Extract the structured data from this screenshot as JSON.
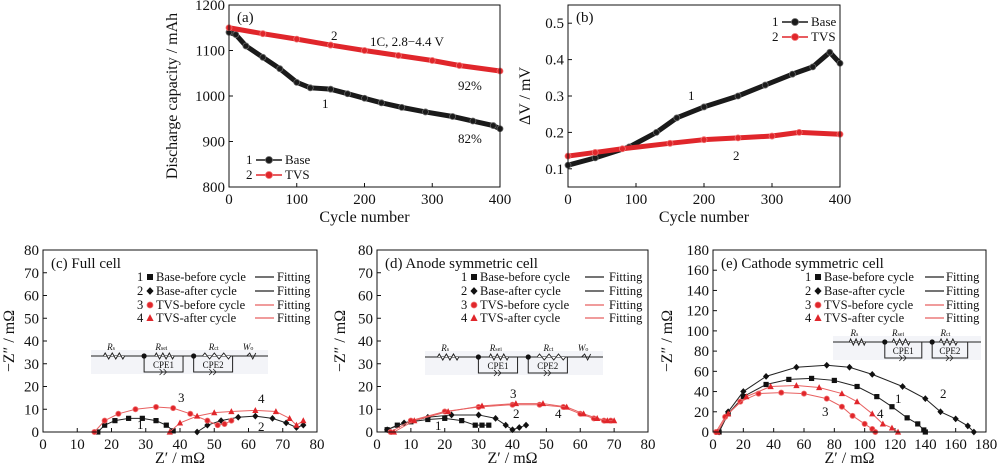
{
  "chart_data": [
    {
      "id": "a",
      "type": "line",
      "panel_label": "(a)",
      "xlabel": "Cycle number",
      "ylabel": "Discharge capacity / mAh",
      "xlim": [
        0,
        400
      ],
      "ylim": [
        800,
        1200
      ],
      "xticks": [
        0,
        100,
        200,
        300,
        400
      ],
      "yticks": [
        800,
        900,
        1000,
        1100,
        1200
      ],
      "legend_position": "bottom-left",
      "annotations": [
        "2",
        "1C, 2.8−4.4 V",
        "92%",
        "1",
        "82%"
      ],
      "series": [
        {
          "name": "Base",
          "number": "1",
          "color": "#1a1a1a",
          "marker": "circle",
          "x": [
            0,
            10,
            25,
            50,
            75,
            100,
            120,
            150,
            175,
            200,
            225,
            255,
            290,
            330,
            360,
            390,
            400
          ],
          "y": [
            1140,
            1135,
            1110,
            1085,
            1060,
            1030,
            1018,
            1015,
            1005,
            995,
            985,
            975,
            965,
            955,
            945,
            935,
            928
          ]
        },
        {
          "name": "TVS",
          "number": "2",
          "color": "#e0262b",
          "marker": "circle",
          "x": [
            0,
            50,
            100,
            150,
            200,
            250,
            300,
            340,
            400
          ],
          "y": [
            1150,
            1137,
            1125,
            1112,
            1100,
            1089,
            1078,
            1067,
            1055
          ]
        }
      ]
    },
    {
      "id": "b",
      "type": "line",
      "panel_label": "(b)",
      "xlabel": "Cycle number",
      "ylabel": "ΔV / mV",
      "xlim": [
        0,
        400
      ],
      "ylim": [
        0.05,
        0.55
      ],
      "xticks": [
        0,
        100,
        200,
        300,
        400
      ],
      "yticks": [
        0.1,
        0.2,
        0.3,
        0.4,
        0.5
      ],
      "legend_position": "top-right",
      "annotations": [
        "1",
        "2"
      ],
      "series": [
        {
          "name": "Base",
          "number": "1",
          "color": "#1a1a1a",
          "marker": "circle",
          "x": [
            0,
            40,
            90,
            130,
            160,
            200,
            250,
            290,
            330,
            360,
            385,
            400
          ],
          "y": [
            0.11,
            0.13,
            0.16,
            0.2,
            0.24,
            0.27,
            0.3,
            0.33,
            0.36,
            0.38,
            0.42,
            0.39
          ]
        },
        {
          "name": "TVS",
          "number": "2",
          "color": "#e0262b",
          "marker": "circle",
          "x": [
            0,
            40,
            80,
            150,
            200,
            250,
            300,
            340,
            400
          ],
          "y": [
            0.135,
            0.145,
            0.155,
            0.17,
            0.18,
            0.185,
            0.19,
            0.2,
            0.195
          ]
        }
      ]
    },
    {
      "id": "c",
      "type": "scatter",
      "panel_label": "(c) Full cell",
      "xlabel": "Z′ / mΩ",
      "ylabel": "−Z″ / mΩ",
      "xlim": [
        0,
        80
      ],
      "ylim": [
        0,
        80
      ],
      "xticks": [
        0,
        10,
        20,
        30,
        40,
        50,
        60,
        70,
        80
      ],
      "yticks": [
        0,
        10,
        20,
        30,
        40,
        50,
        60,
        70,
        80
      ],
      "legend_position": "top-right",
      "fit_label": "Fitting",
      "circuit": {
        "labels": [
          "Rs",
          "Rsei",
          "Rct",
          "W"
        ],
        "elements": [
          "CPE1",
          "CPE2"
        ],
        "warburg_sub": "o"
      },
      "annotations": [
        "3",
        "4",
        "1",
        "2"
      ],
      "series": [
        {
          "name": "Base-before cycle",
          "number": "1",
          "color": "#111111",
          "marker": "square",
          "points": [
            [
              16,
              0
            ],
            [
              18,
              3
            ],
            [
              21,
              5
            ],
            [
              25,
              6
            ],
            [
              29,
              6
            ],
            [
              33,
              5
            ],
            [
              36,
              3
            ],
            [
              38,
              0.5
            ]
          ]
        },
        {
          "name": "Base-after cycle",
          "number": "2",
          "color": "#111111",
          "marker": "diamond",
          "points": [
            [
              45,
              0
            ],
            [
              48,
              3
            ],
            [
              52,
              5
            ],
            [
              57,
              6.5
            ],
            [
              62,
              7
            ],
            [
              67,
              6
            ],
            [
              71,
              4
            ],
            [
              74,
              2
            ],
            [
              76,
              3
            ]
          ]
        },
        {
          "name": "TVS-before cycle",
          "number": "3",
          "color": "#e0262b",
          "marker": "circle",
          "points": [
            [
              15,
              0
            ],
            [
              18,
              5
            ],
            [
              22,
              8
            ],
            [
              27,
              10
            ],
            [
              33,
              11
            ],
            [
              38,
              10.5
            ],
            [
              43,
              8
            ],
            [
              48,
              5
            ],
            [
              51,
              3
            ],
            [
              53,
              3.5
            ],
            [
              55,
              5
            ]
          ]
        },
        {
          "name": "TVS-after cycle",
          "number": "4",
          "color": "#e0262b",
          "marker": "triangle",
          "points": [
            [
              37,
              0
            ],
            [
              40,
              4
            ],
            [
              45,
              7
            ],
            [
              50,
              8.5
            ],
            [
              55,
              9
            ],
            [
              62,
              9.5
            ],
            [
              68,
              9
            ],
            [
              72,
              6
            ],
            [
              74,
              3
            ],
            [
              76,
              5
            ]
          ]
        }
      ]
    },
    {
      "id": "d",
      "type": "scatter",
      "panel_label": "(d) Anode symmetric cell",
      "xlabel": "Z′ / mΩ",
      "ylabel": "−Z″ / mΩ",
      "xlim": [
        0,
        80
      ],
      "ylim": [
        0,
        80
      ],
      "xticks": [
        0,
        10,
        20,
        30,
        40,
        50,
        60,
        70,
        80
      ],
      "yticks": [
        0,
        10,
        20,
        30,
        40,
        50,
        60,
        70,
        80
      ],
      "legend_position": "top-right",
      "fit_label": "Fitting",
      "circuit": {
        "labels": [
          "Rs",
          "Rsei",
          "Rct",
          "W"
        ],
        "elements": [
          "CPE1",
          "CPE2"
        ],
        "warburg_sub": "o"
      },
      "annotations": [
        "3",
        "2",
        "4",
        "1"
      ],
      "series": [
        {
          "name": "Base-before cycle",
          "number": "1",
          "color": "#111111",
          "marker": "square",
          "points": [
            [
              3,
              1
            ],
            [
              6,
              3
            ],
            [
              10,
              4.5
            ],
            [
              15,
              5.5
            ],
            [
              20,
              6
            ],
            [
              25,
              5
            ],
            [
              29,
              3
            ],
            [
              31,
              3
            ],
            [
              33,
              3
            ]
          ]
        },
        {
          "name": "Base-after cycle",
          "number": "2",
          "color": "#111111",
          "marker": "diamond",
          "points": [
            [
              3,
              1
            ],
            [
              8,
              4
            ],
            [
              15,
              6.5
            ],
            [
              22,
              7.5
            ],
            [
              30,
              7.5
            ],
            [
              35,
              6
            ],
            [
              38,
              3
            ],
            [
              40,
              1
            ],
            [
              42,
              2
            ],
            [
              44,
              3
            ]
          ]
        },
        {
          "name": "TVS-before cycle",
          "number": "3",
          "color": "#e0262b",
          "marker": "circle",
          "points": [
            [
              4,
              0
            ],
            [
              10,
              5
            ],
            [
              20,
              9
            ],
            [
              30,
              11
            ],
            [
              40,
              12
            ],
            [
              48,
              12
            ],
            [
              55,
              11
            ],
            [
              60,
              8
            ],
            [
              64,
              6
            ],
            [
              67,
              5
            ],
            [
              69,
              5
            ]
          ]
        },
        {
          "name": "TVS-after cycle",
          "number": "4",
          "color": "#e0262b",
          "marker": "triangle",
          "points": [
            [
              5,
              0
            ],
            [
              11,
              5
            ],
            [
              21,
              9
            ],
            [
              31,
              11.5
            ],
            [
              41,
              12.5
            ],
            [
              49,
              12.5
            ],
            [
              56,
              11
            ],
            [
              61,
              8
            ],
            [
              65,
              6
            ],
            [
              68,
              5
            ],
            [
              70,
              5
            ]
          ]
        }
      ]
    },
    {
      "id": "e",
      "type": "scatter",
      "panel_label": "(e) Cathode symmetric cell",
      "xlabel": "Z′ / mΩ",
      "ylabel": "−Z″ / mΩ",
      "xlim": [
        0,
        180
      ],
      "ylim": [
        0,
        180
      ],
      "xticks": [
        0,
        20,
        40,
        60,
        80,
        100,
        120,
        140,
        160,
        180
      ],
      "yticks": [
        0,
        20,
        40,
        60,
        80,
        100,
        120,
        140,
        160,
        180
      ],
      "legend_position": "top-right",
      "fit_label": "Fitting",
      "circuit": {
        "labels": [
          "Rs",
          "Rsei",
          "Rct"
        ],
        "elements": [
          "CPE1",
          "CPE2"
        ]
      },
      "annotations": [
        "1",
        "2",
        "3",
        "4"
      ],
      "series": [
        {
          "name": "Base-before cycle",
          "number": "1",
          "color": "#111111",
          "marker": "square",
          "points": [
            [
              4,
              0
            ],
            [
              10,
              18
            ],
            [
              20,
              35
            ],
            [
              35,
              47
            ],
            [
              50,
              52
            ],
            [
              65,
              53
            ],
            [
              80,
              51
            ],
            [
              95,
              45
            ],
            [
              108,
              35
            ],
            [
              118,
              25
            ],
            [
              128,
              14
            ],
            [
              135,
              8
            ],
            [
              139,
              2
            ],
            [
              140,
              0
            ]
          ]
        },
        {
          "name": "Base-after cycle",
          "number": "2",
          "color": "#111111",
          "marker": "diamond",
          "points": [
            [
              4,
              0
            ],
            [
              10,
              20
            ],
            [
              20,
              40
            ],
            [
              35,
              55
            ],
            [
              55,
              64
            ],
            [
              75,
              66
            ],
            [
              90,
              64
            ],
            [
              105,
              57
            ],
            [
              125,
              45
            ],
            [
              140,
              33
            ],
            [
              150,
              20
            ],
            [
              160,
              13
            ],
            [
              168,
              6
            ],
            [
              172,
              0
            ]
          ]
        },
        {
          "name": "TVS-before cycle",
          "number": "3",
          "color": "#e0262b",
          "marker": "circle",
          "points": [
            [
              2,
              0
            ],
            [
              8,
              15
            ],
            [
              18,
              30
            ],
            [
              30,
              38
            ],
            [
              45,
              39
            ],
            [
              60,
              38
            ],
            [
              75,
              33
            ],
            [
              85,
              25
            ],
            [
              92,
              16
            ],
            [
              100,
              8
            ],
            [
              105,
              3
            ],
            [
              107,
              0
            ]
          ]
        },
        {
          "name": "TVS-after cycle",
          "number": "4",
          "color": "#e0262b",
          "marker": "triangle",
          "points": [
            [
              3,
              0
            ],
            [
              10,
              18
            ],
            [
              22,
              35
            ],
            [
              38,
              45
            ],
            [
              55,
              46
            ],
            [
              70,
              44
            ],
            [
              85,
              38
            ],
            [
              95,
              30
            ],
            [
              105,
              18
            ],
            [
              112,
              8
            ],
            [
              118,
              4
            ],
            [
              122,
              0
            ]
          ]
        }
      ]
    }
  ]
}
